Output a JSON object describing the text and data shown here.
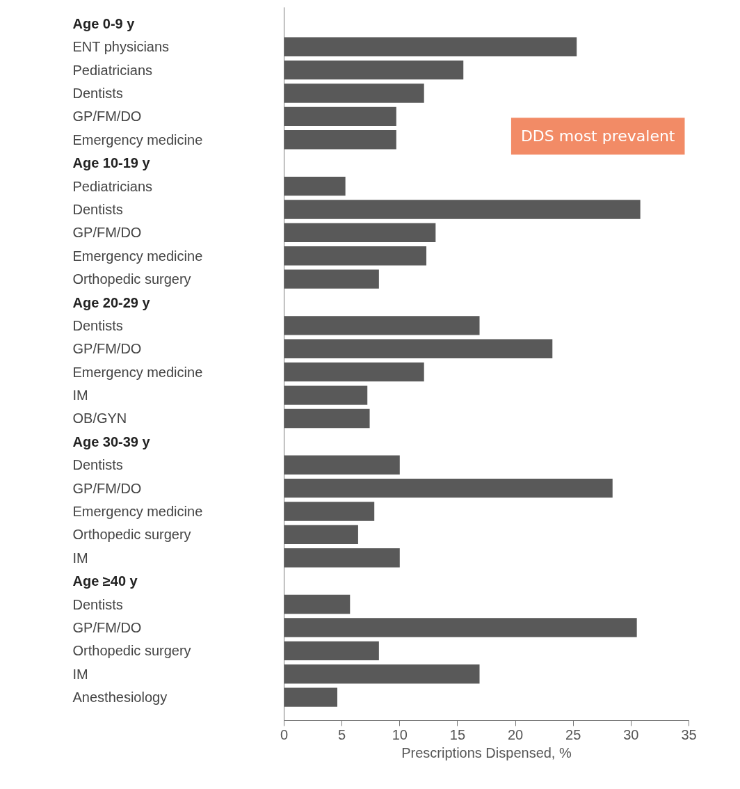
{
  "chart_data": {
    "type": "bar",
    "orientation": "horizontal",
    "xlabel": "Prescriptions Dispensed, %",
    "categories": [
      "Age 0-9 y",
      "ENT physicians",
      "Pediatricians",
      "Dentists",
      "GP/FM/DO",
      "Emergency medicine",
      "Age 10-19 y",
      "Pediatricians",
      "Dentists",
      "GP/FM/DO",
      "Emergency medicine",
      "Orthopedic surgery",
      "Age 20-29 y",
      "Dentists",
      "GP/FM/DO",
      "Emergency medicine",
      "IM",
      "OB/GYN",
      "Age 30-39 y",
      "Dentists",
      "GP/FM/DO",
      "Emergency medicine",
      "Orthopedic surgery",
      "IM",
      "Age ≥40 y",
      "Dentists",
      "GP/FM/DO",
      "Orthopedic surgery",
      "IM",
      "Anesthesiology"
    ],
    "values": [
      null,
      25.3,
      15.5,
      12.1,
      9.7,
      9.7,
      null,
      5.3,
      30.8,
      13.1,
      12.3,
      8.2,
      null,
      16.9,
      23.2,
      12.1,
      7.2,
      7.4,
      null,
      10.0,
      28.4,
      7.8,
      6.4,
      10.0,
      null,
      5.7,
      30.5,
      8.2,
      16.9,
      4.6
    ],
    "color": "#595959",
    "xlim": [
      0,
      35
    ],
    "xticks": [
      0,
      5,
      10,
      15,
      20,
      25,
      30,
      35
    ],
    "grid": false,
    "annotations": [
      "DDS most prevalent"
    ]
  }
}
